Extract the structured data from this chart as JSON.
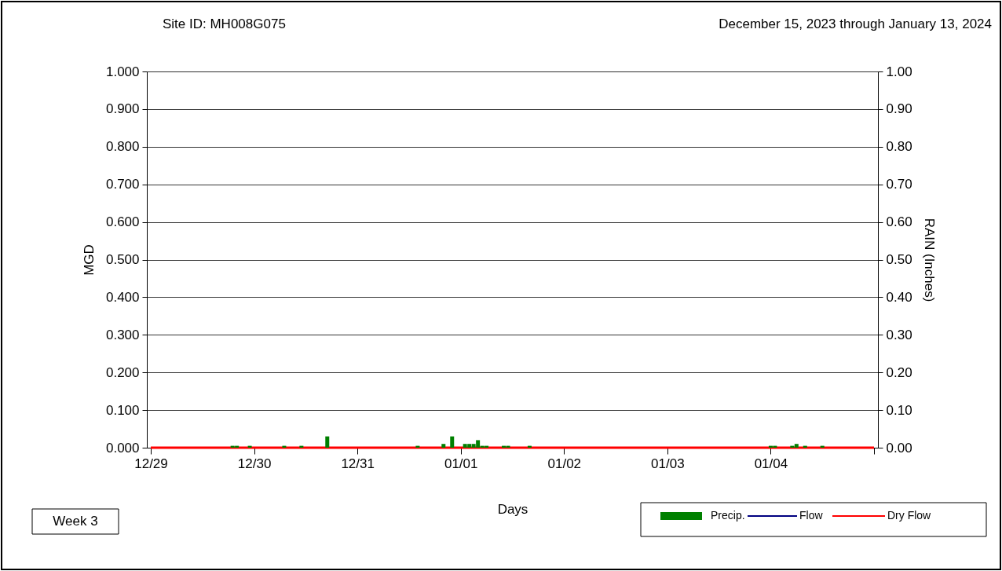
{
  "chart_data": {
    "type": "bar",
    "title": "Site ID: MH008G075",
    "subtitle": "December 15, 2023 through January 13, 2024",
    "xlabel": "Days",
    "ylabel": "MGD",
    "y2label": "RAIN (Inches)",
    "annotations": [
      "Week 3"
    ],
    "xlim": [
      "2023-12-29",
      "2024-01-05"
    ],
    "xticks": [
      {
        "value": "2023-12-29",
        "label": "12/29"
      },
      {
        "value": "2023-12-30",
        "label": "12/30"
      },
      {
        "value": "2023-12-31",
        "label": "12/31"
      },
      {
        "value": "2024-01-01",
        "label": "01/01"
      },
      {
        "value": "2024-01-02",
        "label": "01/02"
      },
      {
        "value": "2024-01-03",
        "label": "01/03"
      },
      {
        "value": "2024-01-04",
        "label": "01/04"
      },
      {
        "value": "2024-01-05",
        "label": null
      }
    ],
    "ylim": [
      0,
      1
    ],
    "yticks": [
      {
        "value": 0,
        "label": "0.000"
      },
      {
        "value": 0.1,
        "label": "0.100"
      },
      {
        "value": 0.2,
        "label": "0.200"
      },
      {
        "value": 0.3,
        "label": "0.300"
      },
      {
        "value": 0.4,
        "label": "0.400"
      },
      {
        "value": 0.5,
        "label": "0.500"
      },
      {
        "value": 0.6,
        "label": "0.600"
      },
      {
        "value": 0.7,
        "label": "0.700"
      },
      {
        "value": 0.8,
        "label": "0.800"
      },
      {
        "value": 0.9,
        "label": "0.900"
      },
      {
        "value": 1,
        "label": "1.000"
      }
    ],
    "y2lim": [
      0,
      1
    ],
    "y2ticks": [
      {
        "value": 0,
        "label": "0.00"
      },
      {
        "value": 0.1,
        "label": "0.10"
      },
      {
        "value": 0.2,
        "label": "0.20"
      },
      {
        "value": 0.3,
        "label": "0.30"
      },
      {
        "value": 0.4,
        "label": "0.40"
      },
      {
        "value": 0.5,
        "label": "0.50"
      },
      {
        "value": 0.6,
        "label": "0.60"
      },
      {
        "value": 0.7,
        "label": "0.70"
      },
      {
        "value": 0.8,
        "label": "0.80"
      },
      {
        "value": 0.9,
        "label": "0.90"
      },
      {
        "value": 1,
        "label": "1.00"
      }
    ],
    "grid": "y",
    "legend": "bottom right",
    "series": [
      {
        "name": "Precip.",
        "type": "bar",
        "axis": "y2",
        "color": "#008000",
        "x": [
          "2023-12-29T19:00",
          "2023-12-29T20:00",
          "2023-12-29T23:00",
          "2023-12-30T07:00",
          "2023-12-30T11:00",
          "2023-12-30T17:00",
          "2023-12-31T14:00",
          "2023-12-31T20:00",
          "2023-12-31T22:00",
          "2024-01-01T01:00",
          "2024-01-01T02:00",
          "2024-01-01T03:00",
          "2024-01-01T04:00",
          "2024-01-01T05:00",
          "2024-01-01T06:00",
          "2024-01-01T10:00",
          "2024-01-01T11:00",
          "2024-01-01T16:00",
          "2024-01-04T00:00",
          "2024-01-04T01:00",
          "2024-01-04T05:00",
          "2024-01-04T06:00",
          "2024-01-04T08:00",
          "2024-01-04T12:00"
        ],
        "values": [
          0.005,
          0.005,
          0.005,
          0.005,
          0.005,
          0.03,
          0.005,
          0.01,
          0.03,
          0.01,
          0.01,
          0.01,
          0.02,
          0.005,
          0.005,
          0.005,
          0.005,
          0.005,
          0.005,
          0.005,
          0.005,
          0.01,
          0.005,
          0.005
        ]
      },
      {
        "name": "Flow",
        "type": "line",
        "color": "#000080"
      },
      {
        "name": "Dry Flow",
        "type": "line",
        "color": "#ff0000",
        "x": [
          "2023-12-29",
          "2024-01-05"
        ],
        "values": [
          0,
          0
        ]
      }
    ]
  }
}
